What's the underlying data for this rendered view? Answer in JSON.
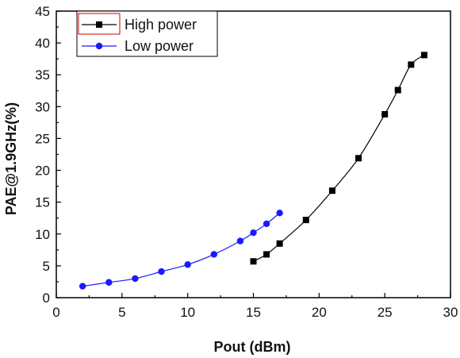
{
  "chart_data": {
    "type": "line",
    "xlabel": "Pout (dBm)",
    "ylabel": "PAE@1.9GHz(%)",
    "xlim": [
      0,
      30
    ],
    "ylim": [
      0,
      45
    ],
    "xticks": [
      "0",
      "5",
      "10",
      "15",
      "20",
      "25",
      "30"
    ],
    "yticks": [
      "0",
      "5",
      "10",
      "15",
      "20",
      "25",
      "30",
      "35",
      "40",
      "45"
    ],
    "grid": false,
    "legend_position": "top-left",
    "series": [
      {
        "name": "High power",
        "marker": "square",
        "color": "#000000",
        "x": [
          15.0,
          16.0,
          17.0,
          19.0,
          21.0,
          23.0,
          25.0,
          26.0,
          27.0,
          28.0
        ],
        "y": [
          5.7,
          6.8,
          8.5,
          12.2,
          16.8,
          21.9,
          28.8,
          32.6,
          36.6,
          38.1
        ]
      },
      {
        "name": "Low power",
        "marker": "circle",
        "color": "#1a1aff",
        "x": [
          2.0,
          4.0,
          6.0,
          8.0,
          10.0,
          12.0,
          14.0,
          15.0,
          16.0,
          17.0
        ],
        "y": [
          1.8,
          2.4,
          3.0,
          4.1,
          5.2,
          6.8,
          8.9,
          10.2,
          11.6,
          13.3
        ]
      }
    ]
  }
}
